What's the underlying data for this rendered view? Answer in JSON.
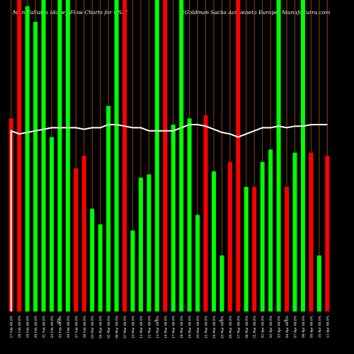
{
  "header": {
    "left": "MunafaSutra  Money Flow  Charts for GSEI",
    "right": "(Goldman  Sachs Activebeta  Europe) MunafaSutra.com"
  },
  "chart_data": {
    "type": "bar",
    "title": "MunafaSutra  Money Flow  Charts for GSEI (Goldman  Sachs Activebeta  Europe) MunafaSutra.com",
    "colors": {
      "up": "#00ff00",
      "down": "#ff0000",
      "line": "#ffffff",
      "grid": "#8b4513",
      "background": "#000000"
    },
    "categories": [
      "17 Feb 48.0%",
      "18 Feb 48.0%",
      "19 Feb 48.0%",
      "20 Feb 48.0%",
      "21 Feb 48.0%",
      "24 Feb 48.0%",
      "25 Feb 48.0%",
      "26 Feb 48.0%",
      "27 Feb 48.0%",
      "28 Feb 48.0%",
      "03 Mar 48.0%",
      "04 Mar 48.0%",
      "05 Mar 48.0%",
      "06 Mar 48.0%",
      "07 Mar 48.0%",
      "10 Mar 48.0%",
      "11 Mar 48.0%",
      "12 Mar 48.0%",
      "13 Mar 48.0%",
      "14 Mar 48.0%",
      "17 Mar 48.0%",
      "18 Mar 48.0%",
      "19 Mar 48.0%",
      "20 Mar 48.0%",
      "21 Mar 48.0%",
      "24 Mar 48.0%",
      "25 Mar 48.0%",
      "26 Mar 48.0%",
      "27 Mar 48.0%",
      "28 Mar 48.0%",
      "31 Mar 48.0%",
      "01 Apr 48.0%",
      "02 Apr 48.0%",
      "03 Apr 48.0%",
      "04 Apr 48.0%",
      "07 Apr 48.0%",
      "08 Apr 48.0%",
      "09 Apr 48.0%",
      "10 Apr 48.0%",
      "11 Apr 48.0%"
    ],
    "series": [
      {
        "values": [
          62,
          100,
          98,
          93,
          100,
          56,
          100,
          100,
          46,
          50,
          33,
          28,
          66,
          100,
          100,
          26,
          43,
          44,
          100,
          100,
          60,
          100,
          62,
          31,
          63,
          45,
          18,
          48,
          100,
          40,
          40,
          48,
          52,
          100,
          40,
          51,
          100,
          51,
          18,
          50
        ],
        "direction": [
          "down",
          "down",
          "up",
          "up",
          "up",
          "up",
          "up",
          "up",
          "down",
          "down",
          "up",
          "up",
          "up",
          "up",
          "down",
          "up",
          "up",
          "up",
          "up",
          "down",
          "up",
          "up",
          "up",
          "up",
          "down",
          "up",
          "up",
          "down",
          "down",
          "up",
          "down",
          "up",
          "up",
          "up",
          "down",
          "up",
          "up",
          "down",
          "up",
          "down"
        ]
      },
      {
        "values": [
          58,
          57,
          57.5,
          58,
          58.5,
          59,
          59,
          59,
          59,
          58.5,
          59,
          59,
          60,
          60,
          59.5,
          59,
          59,
          58,
          58,
          58,
          58,
          59,
          60,
          60,
          59.5,
          58.5,
          57.5,
          57,
          56,
          57,
          58,
          59,
          59,
          59.5,
          59,
          59.5,
          59.5,
          60,
          60,
          60
        ]
      }
    ],
    "ylim": [
      0,
      100
    ],
    "mid_marks": [
      "0%",
      "0",
      "0",
      "0"
    ]
  }
}
